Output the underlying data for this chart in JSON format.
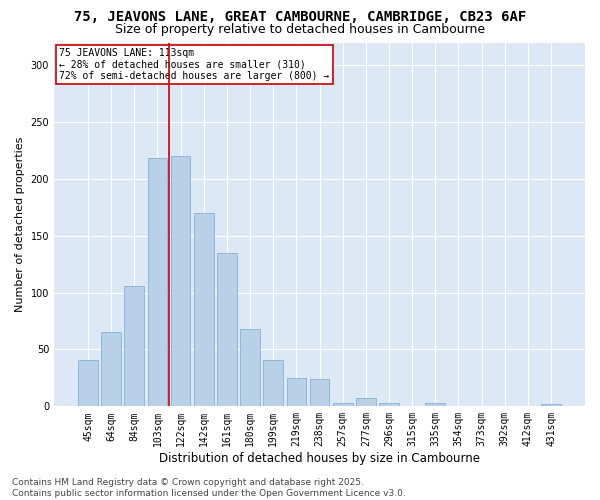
{
  "title1": "75, JEAVONS LANE, GREAT CAMBOURNE, CAMBRIDGE, CB23 6AF",
  "title2": "Size of property relative to detached houses in Cambourne",
  "xlabel": "Distribution of detached houses by size in Cambourne",
  "ylabel": "Number of detached properties",
  "categories": [
    "45sqm",
    "64sqm",
    "84sqm",
    "103sqm",
    "122sqm",
    "142sqm",
    "161sqm",
    "180sqm",
    "199sqm",
    "219sqm",
    "238sqm",
    "257sqm",
    "277sqm",
    "296sqm",
    "315sqm",
    "335sqm",
    "354sqm",
    "373sqm",
    "392sqm",
    "412sqm",
    "431sqm"
  ],
  "values": [
    41,
    65,
    106,
    218,
    220,
    170,
    135,
    68,
    41,
    25,
    24,
    3,
    7,
    3,
    0,
    3,
    0,
    0,
    0,
    0,
    2
  ],
  "bar_color": "#b8d0e8",
  "bar_edge_color": "#7aaac8",
  "vline_x": 3.5,
  "vline_color": "#cc0000",
  "annotation_text": "75 JEAVONS LANE: 113sqm\n← 28% of detached houses are smaller (310)\n72% of semi-detached houses are larger (800) →",
  "annotation_box_color": "#ffffff",
  "annotation_box_edge": "#cc0000",
  "ylim": [
    0,
    320
  ],
  "yticks": [
    0,
    50,
    100,
    150,
    200,
    250,
    300
  ],
  "background_color": "#dce8f5",
  "fig_background": "#ffffff",
  "grid_color": "#ffffff",
  "footer1": "Contains HM Land Registry data © Crown copyright and database right 2025.",
  "footer2": "Contains public sector information licensed under the Open Government Licence v3.0.",
  "title1_fontsize": 10,
  "title2_fontsize": 9,
  "xlabel_fontsize": 8.5,
  "ylabel_fontsize": 8,
  "tick_fontsize": 7,
  "annotation_fontsize": 7,
  "footer_fontsize": 6.5
}
